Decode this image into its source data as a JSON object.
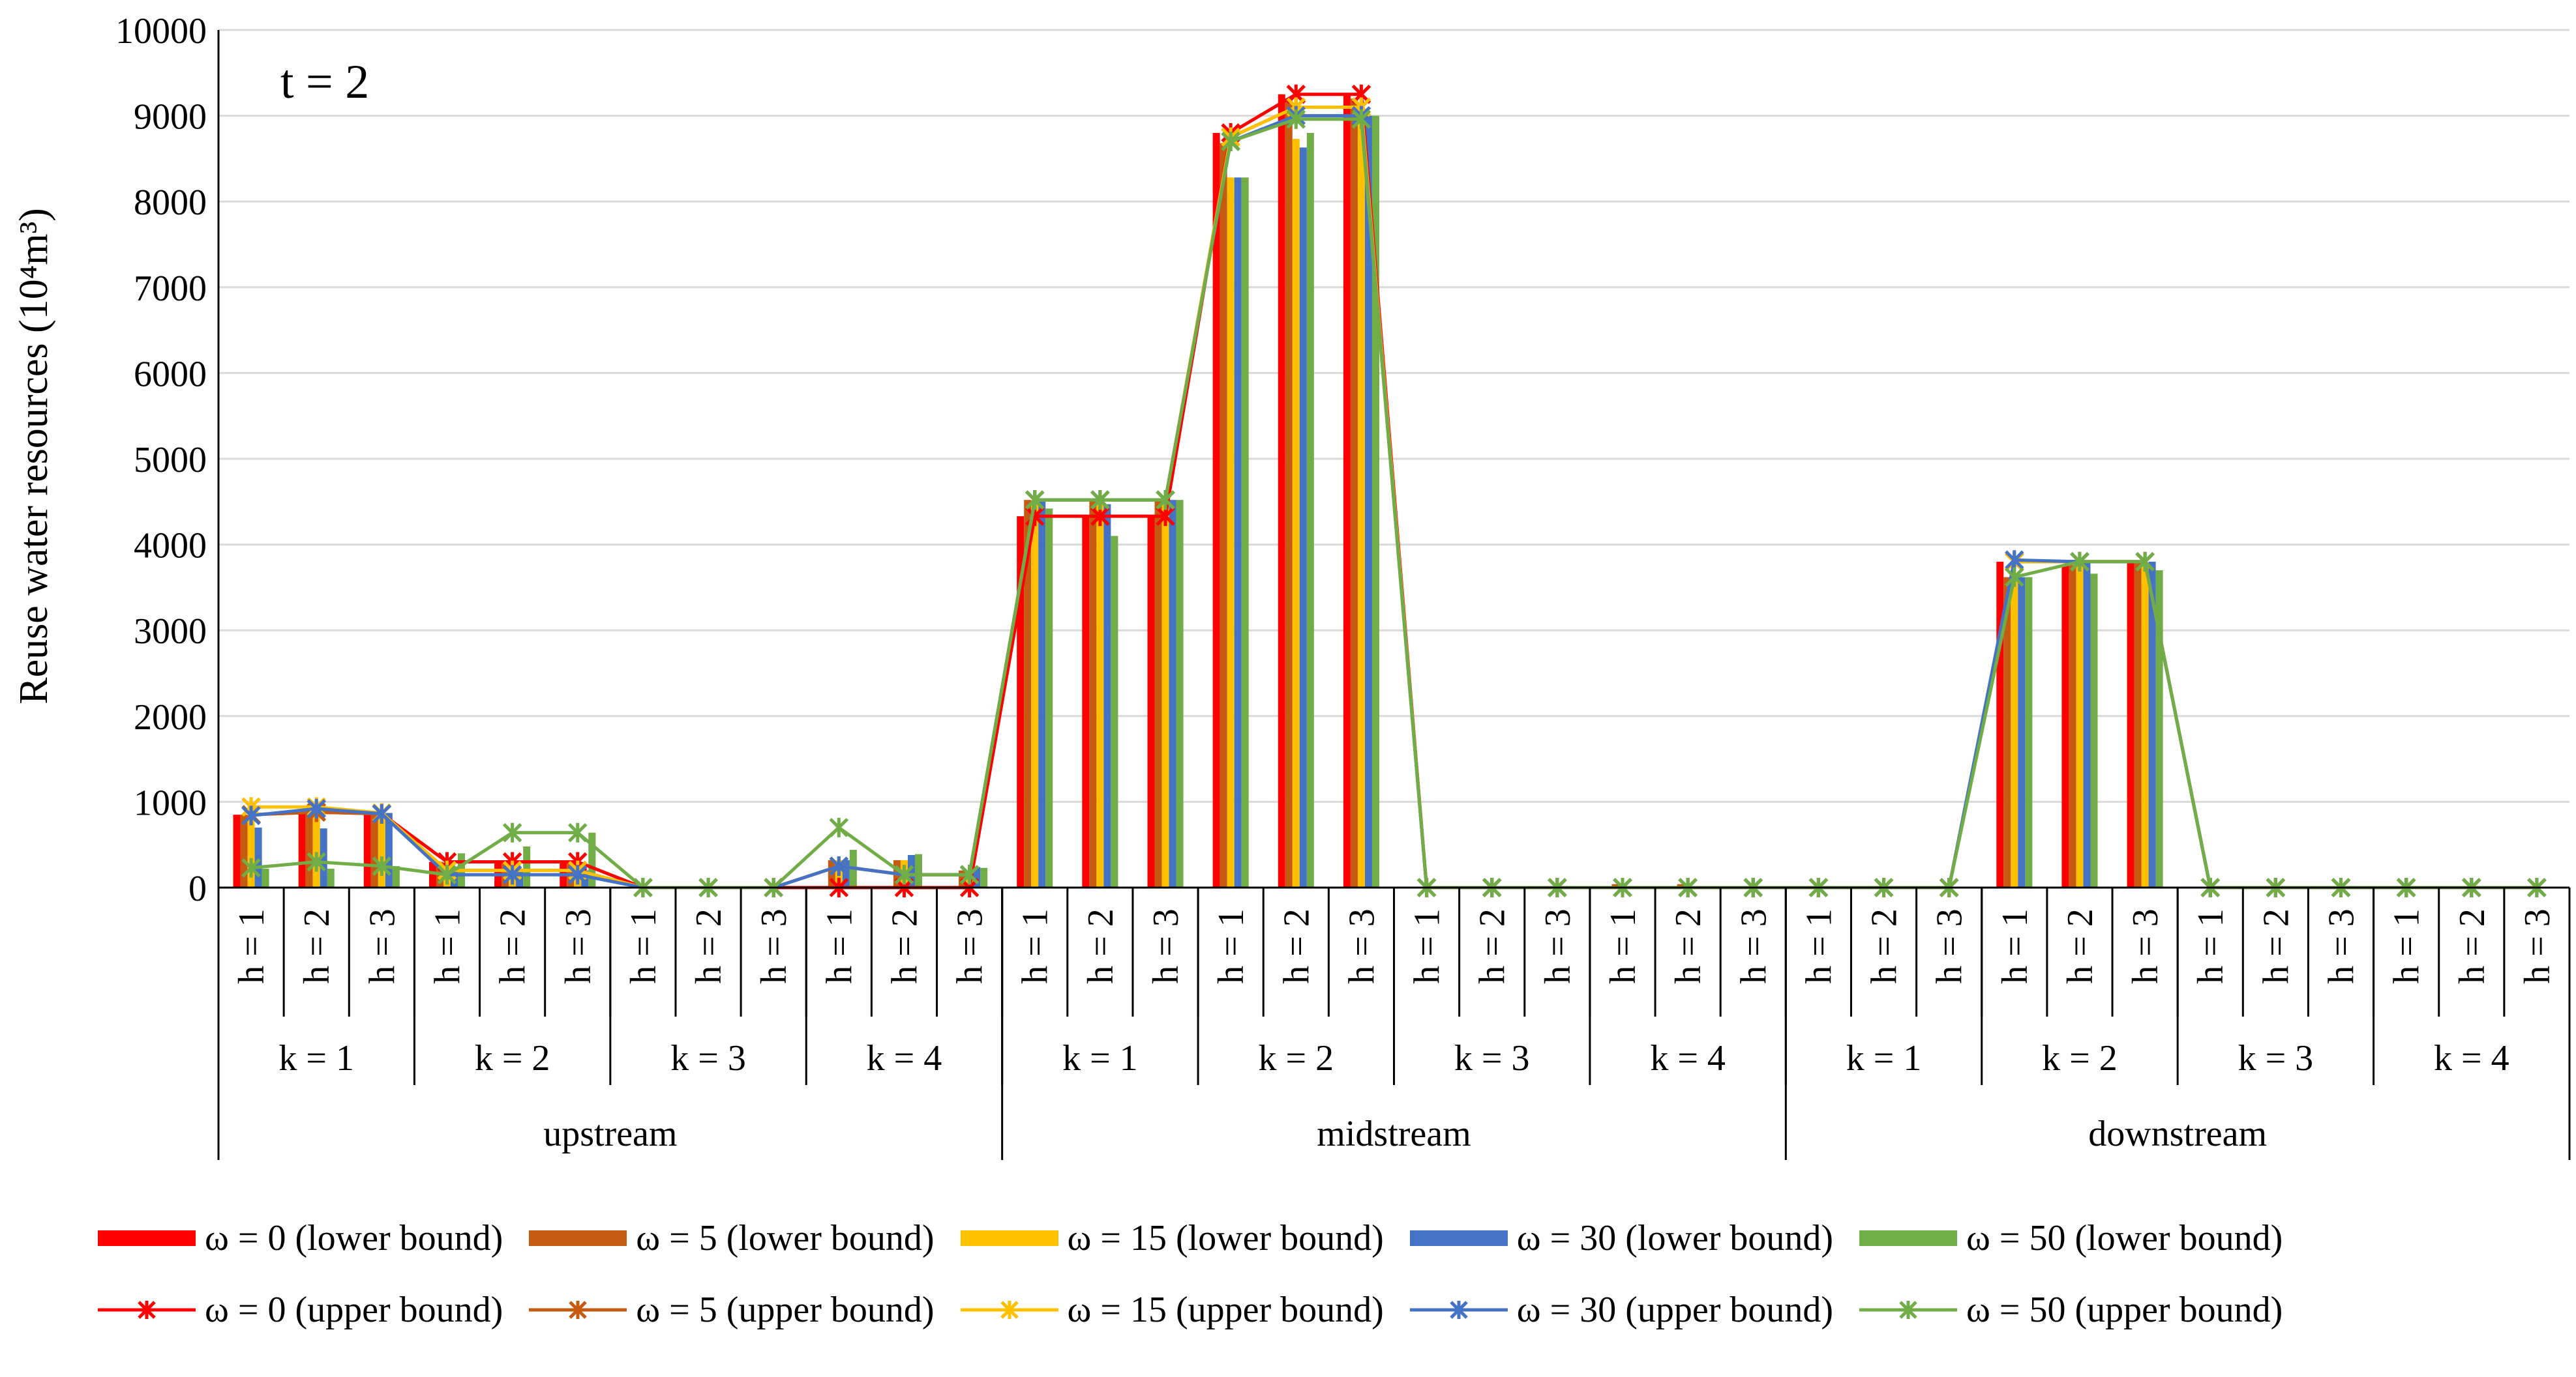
{
  "chart_data": {
    "type": "bar",
    "annotation": "t = 2",
    "ylabel": "Reuse water resources (10⁴m³)",
    "ylim": [
      0,
      10000
    ],
    "yticks": [
      0,
      1000,
      2000,
      3000,
      4000,
      5000,
      6000,
      7000,
      8000,
      9000,
      10000
    ],
    "grid": "horizontal",
    "legend_position": "bottom",
    "regions": [
      "upstream",
      "midstream",
      "downstream"
    ],
    "k_labels": [
      "k = 1",
      "k = 2",
      "k = 3",
      "k = 4"
    ],
    "h_labels": [
      "h = 1",
      "h = 2",
      "h = 3"
    ],
    "bar_series": [
      {
        "name": "ω = 0 (lower bound)",
        "color": "#FF0000",
        "values": [
          850,
          880,
          860,
          300,
          300,
          300,
          0,
          0,
          0,
          0,
          0,
          0,
          4330,
          4330,
          4330,
          8800,
          9250,
          9250,
          0,
          0,
          0,
          0,
          0,
          0,
          0,
          0,
          0,
          3800,
          3760,
          3800,
          0,
          0,
          0,
          0,
          0,
          0
        ]
      },
      {
        "name": "ω = 5 (lower bound)",
        "color": "#C55A11",
        "values": [
          850,
          880,
          860,
          300,
          300,
          300,
          0,
          0,
          0,
          320,
          320,
          200,
          4520,
          4520,
          4520,
          8680,
          9200,
          9200,
          0,
          0,
          0,
          40,
          40,
          0,
          0,
          0,
          0,
          3620,
          3760,
          3800,
          0,
          0,
          0,
          0,
          0,
          0
        ]
      },
      {
        "name": "ω = 15 (lower bound)",
        "color": "#FFC000",
        "values": [
          970,
          940,
          870,
          200,
          200,
          200,
          0,
          0,
          0,
          320,
          320,
          200,
          4520,
          4500,
          4500,
          8280,
          8730,
          9100,
          0,
          0,
          0,
          0,
          0,
          0,
          0,
          0,
          0,
          3620,
          3760,
          3780,
          0,
          0,
          0,
          0,
          0,
          0
        ]
      },
      {
        "name": "ω = 30 (lower bound)",
        "color": "#4472C4",
        "values": [
          700,
          690,
          870,
          200,
          200,
          200,
          0,
          0,
          0,
          320,
          380,
          240,
          4500,
          4470,
          4520,
          8280,
          8630,
          9000,
          0,
          0,
          0,
          0,
          0,
          0,
          0,
          0,
          0,
          3620,
          3800,
          3800,
          0,
          0,
          0,
          0,
          0,
          0
        ]
      },
      {
        "name": "ω = 50 (lower bound)",
        "color": "#70AD47",
        "values": [
          220,
          220,
          250,
          400,
          480,
          640,
          0,
          0,
          0,
          440,
          390,
          230,
          4420,
          4100,
          4520,
          8280,
          8800,
          9000,
          0,
          0,
          0,
          0,
          0,
          0,
          0,
          0,
          0,
          3620,
          3660,
          3700,
          0,
          0,
          0,
          0,
          0,
          0
        ]
      }
    ],
    "line_series": [
      {
        "name": "ω = 0 (upper bound)",
        "color": "#FF0000",
        "values": [
          850,
          880,
          860,
          300,
          300,
          300,
          0,
          0,
          0,
          0,
          0,
          0,
          4330,
          4330,
          4330,
          8800,
          9250,
          9250,
          0,
          0,
          0,
          0,
          0,
          0,
          0,
          0,
          0,
          3800,
          3800,
          3800,
          0,
          0,
          0,
          0,
          0,
          0
        ]
      },
      {
        "name": "ω = 5 (upper bound)",
        "color": "#C55A11",
        "values": [
          850,
          880,
          860,
          200,
          200,
          200,
          0,
          0,
          0,
          250,
          150,
          150,
          4520,
          4520,
          4520,
          8750,
          9100,
          9100,
          0,
          0,
          0,
          0,
          0,
          0,
          0,
          0,
          0,
          3800,
          3800,
          3800,
          0,
          0,
          0,
          0,
          0,
          0
        ]
      },
      {
        "name": "ω = 15 (upper bound)",
        "color": "#FFC000",
        "values": [
          940,
          940,
          870,
          200,
          200,
          200,
          0,
          0,
          0,
          250,
          150,
          150,
          4520,
          4520,
          4520,
          8750,
          9100,
          9100,
          0,
          0,
          0,
          0,
          0,
          0,
          0,
          0,
          0,
          3800,
          3800,
          3800,
          0,
          0,
          0,
          0,
          0,
          0
        ]
      },
      {
        "name": "ω = 30 (upper bound)",
        "color": "#4472C4",
        "values": [
          840,
          920,
          860,
          150,
          150,
          150,
          0,
          0,
          0,
          250,
          150,
          150,
          4520,
          4520,
          4520,
          8700,
          9000,
          9000,
          0,
          0,
          0,
          0,
          0,
          0,
          0,
          0,
          0,
          3820,
          3800,
          3800,
          0,
          0,
          0,
          0,
          0,
          0
        ]
      },
      {
        "name": "ω = 50 (upper bound)",
        "color": "#70AD47",
        "values": [
          230,
          300,
          250,
          150,
          640,
          640,
          0,
          0,
          0,
          700,
          150,
          150,
          4520,
          4520,
          4520,
          8700,
          8960,
          8960,
          0,
          0,
          0,
          0,
          0,
          0,
          0,
          0,
          0,
          3620,
          3800,
          3800,
          0,
          0,
          0,
          0,
          0,
          0
        ]
      }
    ]
  }
}
